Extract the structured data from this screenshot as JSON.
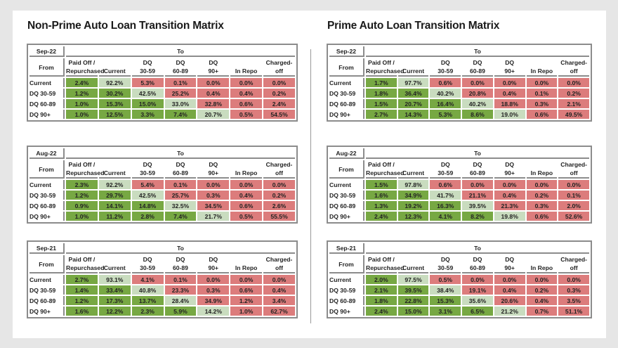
{
  "colors": {
    "lower": "#77a843",
    "diagonal": "#c9dcbf",
    "upper": "#dc7c7c"
  },
  "columns": [
    "Paid Off /\nRepurchased",
    "Current",
    "DQ\n30-59",
    "DQ\n60-89",
    "DQ\n90+",
    "In Repo",
    "Charged-\noff"
  ],
  "rows": [
    "Current",
    "DQ 30-59",
    "DQ 60-89",
    "DQ 90+"
  ],
  "to_label": "To",
  "from_label": "From",
  "panels": [
    {
      "title": "Non-Prime Auto Loan Transition Matrix",
      "tables": [
        {
          "period": "Sep-22",
          "values": [
            [
              "2.4%",
              "92.2%",
              "5.3%",
              "0.1%",
              "0.0%",
              "0.0%",
              "0.0%"
            ],
            [
              "1.2%",
              "30.2%",
              "42.5%",
              "25.2%",
              "0.4%",
              "0.4%",
              "0.2%"
            ],
            [
              "1.0%",
              "15.3%",
              "15.0%",
              "33.0%",
              "32.8%",
              "0.6%",
              "2.4%"
            ],
            [
              "1.0%",
              "12.5%",
              "3.3%",
              "7.4%",
              "20.7%",
              "0.5%",
              "54.5%"
            ]
          ]
        },
        {
          "period": "Aug-22",
          "values": [
            [
              "2.3%",
              "92.2%",
              "5.4%",
              "0.1%",
              "0.0%",
              "0.0%",
              "0.0%"
            ],
            [
              "1.2%",
              "29.7%",
              "42.5%",
              "25.7%",
              "0.3%",
              "0.4%",
              "0.2%"
            ],
            [
              "0.9%",
              "14.1%",
              "14.8%",
              "32.5%",
              "34.5%",
              "0.6%",
              "2.6%"
            ],
            [
              "1.0%",
              "11.2%",
              "2.8%",
              "7.4%",
              "21.7%",
              "0.5%",
              "55.5%"
            ]
          ]
        },
        {
          "period": "Sep-21",
          "values": [
            [
              "2.7%",
              "93.1%",
              "4.1%",
              "0.1%",
              "0.0%",
              "0.0%",
              "0.0%"
            ],
            [
              "1.4%",
              "33.4%",
              "40.8%",
              "23.3%",
              "0.3%",
              "0.6%",
              "0.4%"
            ],
            [
              "1.2%",
              "17.3%",
              "13.7%",
              "28.4%",
              "34.9%",
              "1.2%",
              "3.4%"
            ],
            [
              "1.6%",
              "12.2%",
              "2.3%",
              "5.9%",
              "14.2%",
              "1.0%",
              "62.7%"
            ]
          ]
        }
      ]
    },
    {
      "title": "Prime Auto Loan Transition Matrix",
      "tables": [
        {
          "period": "Sep-22",
          "values": [
            [
              "1.7%",
              "97.7%",
              "0.6%",
              "0.0%",
              "0.0%",
              "0.0%",
              "0.0%"
            ],
            [
              "1.8%",
              "36.4%",
              "40.2%",
              "20.8%",
              "0.4%",
              "0.1%",
              "0.2%"
            ],
            [
              "1.5%",
              "20.7%",
              "16.4%",
              "40.2%",
              "18.8%",
              "0.3%",
              "2.1%"
            ],
            [
              "2.7%",
              "14.3%",
              "5.3%",
              "8.6%",
              "19.0%",
              "0.6%",
              "49.5%"
            ]
          ]
        },
        {
          "period": "Aug-22",
          "values": [
            [
              "1.5%",
              "97.8%",
              "0.6%",
              "0.0%",
              "0.0%",
              "0.0%",
              "0.0%"
            ],
            [
              "1.6%",
              "34.9%",
              "41.7%",
              "21.1%",
              "0.4%",
              "0.2%",
              "0.1%"
            ],
            [
              "1.3%",
              "19.2%",
              "16.3%",
              "39.5%",
              "21.3%",
              "0.3%",
              "2.0%"
            ],
            [
              "2.4%",
              "12.3%",
              "4.1%",
              "8.2%",
              "19.8%",
              "0.6%",
              "52.6%"
            ]
          ]
        },
        {
          "period": "Sep-21",
          "values": [
            [
              "2.0%",
              "97.5%",
              "0.5%",
              "0.0%",
              "0.0%",
              "0.0%",
              "0.0%"
            ],
            [
              "2.1%",
              "39.5%",
              "38.4%",
              "19.1%",
              "0.4%",
              "0.2%",
              "0.3%"
            ],
            [
              "1.8%",
              "22.8%",
              "15.3%",
              "35.6%",
              "20.6%",
              "0.4%",
              "3.5%"
            ],
            [
              "2.4%",
              "15.0%",
              "3.1%",
              "6.5%",
              "21.2%",
              "0.7%",
              "51.1%"
            ]
          ]
        }
      ]
    }
  ]
}
